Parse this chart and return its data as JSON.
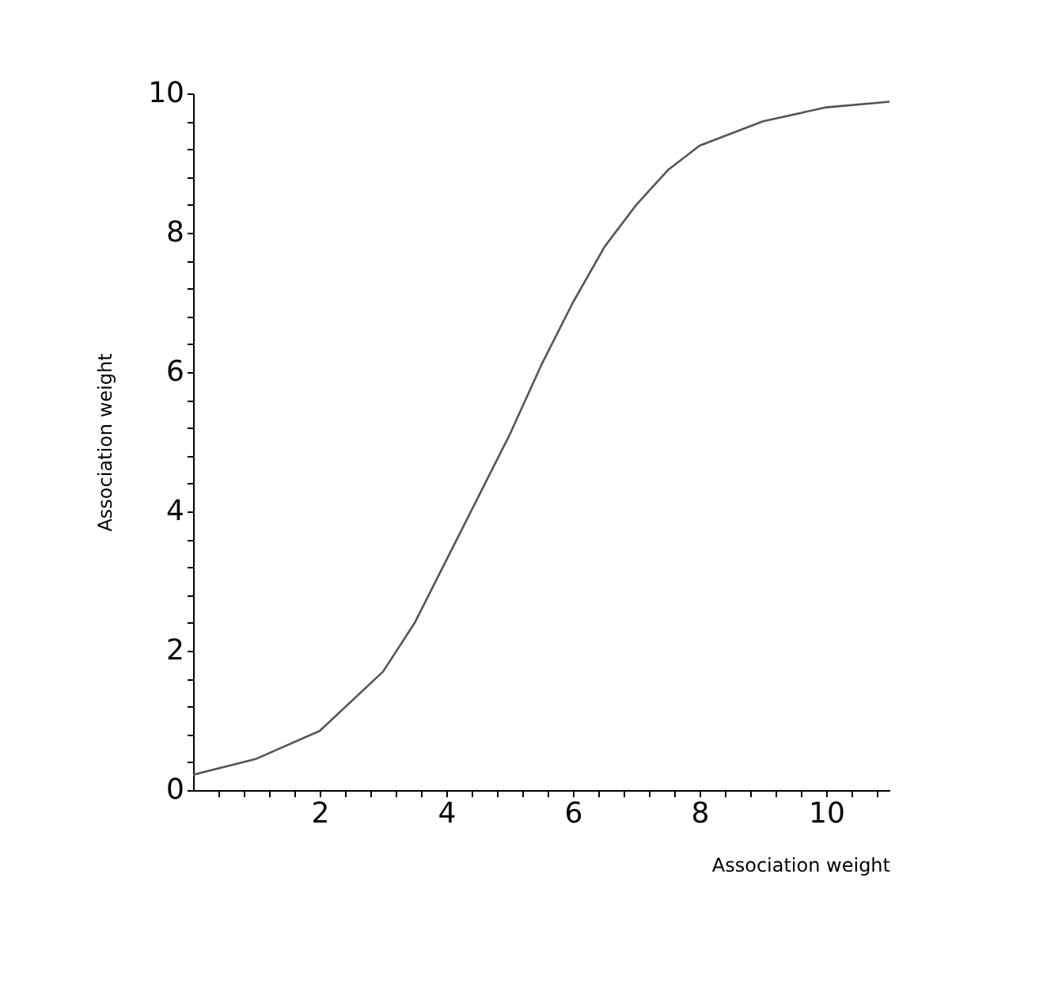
{
  "chart_data": {
    "type": "line",
    "xlabel": "Association weight",
    "ylabel": "Association weight",
    "x": [
      0,
      1,
      2,
      3,
      3.5,
      4,
      4.5,
      5,
      5.5,
      6,
      6.5,
      7,
      7.5,
      8,
      9,
      10,
      11
    ],
    "series": [
      {
        "color": "#555555",
        "values": [
          0.22,
          0.45,
          0.85,
          1.7,
          2.4,
          3.3,
          4.2,
          5.1,
          6.1,
          7.0,
          7.8,
          8.4,
          8.9,
          9.25,
          9.6,
          9.8,
          9.88
        ]
      }
    ],
    "xlim": [
      0,
      11
    ],
    "ylim": [
      0,
      10
    ],
    "xticks": [
      {
        "value": 0.4,
        "label": null
      },
      {
        "value": 0.8,
        "label": null
      },
      {
        "value": 1.2,
        "label": null
      },
      {
        "value": 1.6,
        "label": null
      },
      2,
      {
        "value": 2.4,
        "label": null
      },
      {
        "value": 2.8,
        "label": null
      },
      {
        "value": 3.2,
        "label": null
      },
      {
        "value": 3.6,
        "label": null
      },
      4,
      {
        "value": 4.4,
        "label": null
      },
      {
        "value": 4.8,
        "label": null
      },
      {
        "value": 5.2,
        "label": null
      },
      {
        "value": 5.6,
        "label": null
      },
      6,
      {
        "value": 6.4,
        "label": null
      },
      {
        "value": 6.8,
        "label": null
      },
      {
        "value": 7.2,
        "label": null
      },
      {
        "value": 7.6,
        "label": null
      },
      8,
      {
        "value": 8.4,
        "label": null
      },
      {
        "value": 8.8,
        "label": null
      },
      {
        "value": 9.2,
        "label": null
      },
      {
        "value": 9.6,
        "label": null
      },
      10,
      {
        "value": 10.4,
        "label": null
      },
      {
        "value": 10.8,
        "label": null
      }
    ],
    "yticks": [
      0,
      {
        "value": 0.4,
        "label": null
      },
      {
        "value": 0.8,
        "label": null
      },
      {
        "value": 1.2,
        "label": null
      },
      {
        "value": 1.6,
        "label": null
      },
      2,
      {
        "value": 2.4,
        "label": null
      },
      {
        "value": 2.8,
        "label": null
      },
      {
        "value": 3.2,
        "label": null
      },
      {
        "value": 3.6,
        "label": null
      },
      4,
      {
        "value": 4.4,
        "label": null
      },
      {
        "value": 4.8,
        "label": null
      },
      {
        "value": 5.2,
        "label": null
      },
      {
        "value": 5.6,
        "label": null
      },
      6,
      {
        "value": 6.4,
        "label": null
      },
      {
        "value": 6.8,
        "label": null
      },
      {
        "value": 7.2,
        "label": null
      },
      {
        "value": 7.6,
        "label": null
      },
      8,
      {
        "value": 8.4,
        "label": null
      },
      {
        "value": 8.8,
        "label": null
      },
      {
        "value": 9.2,
        "label": null
      },
      {
        "value": 9.6,
        "label": null
      },
      10
    ],
    "grid": false,
    "legend": false,
    "marker": "none",
    "line_style": "solid"
  }
}
